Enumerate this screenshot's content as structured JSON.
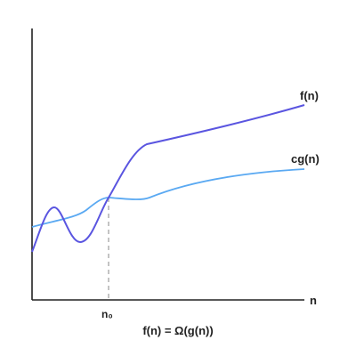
{
  "labels": {
    "f": "f(n)",
    "cg": "cg(n)",
    "x_axis": "n",
    "n0": "n₀",
    "caption": "f(n) = Ω(g(n))"
  },
  "colors": {
    "axis": "#222222",
    "f_curve": "#5a55e0",
    "cg_curve": "#5aa9f2",
    "guide": "#aaaaaa"
  }
}
